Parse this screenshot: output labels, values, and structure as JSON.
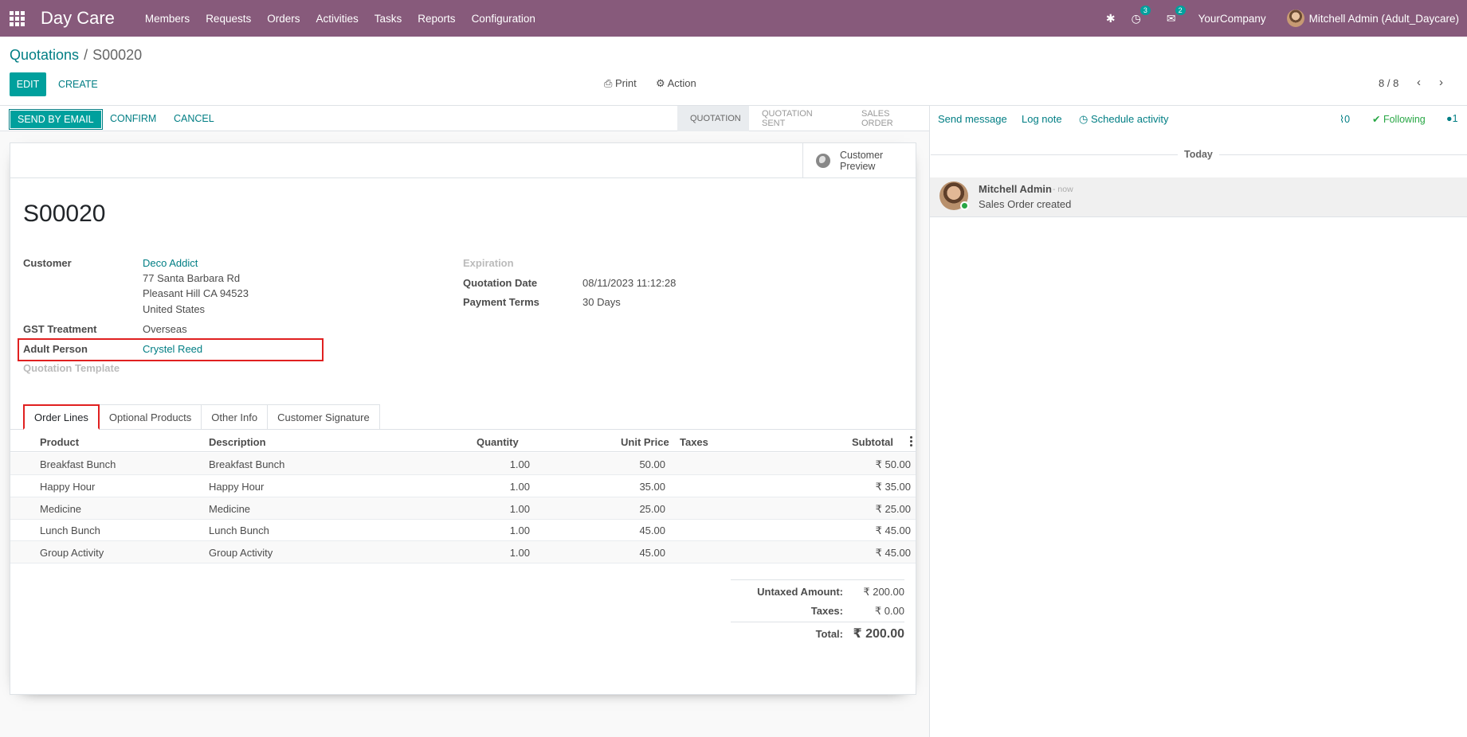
{
  "navbar": {
    "brand": "Day Care",
    "menu": [
      "Members",
      "Requests",
      "Orders",
      "Activities",
      "Tasks",
      "Reports",
      "Configuration"
    ],
    "activity_count": "3",
    "message_count": "2",
    "company": "YourCompany",
    "user": "Mitchell Admin (Adult_Daycare)"
  },
  "control": {
    "breadcrumb_parent": "Quotations",
    "breadcrumb_sep": "/",
    "breadcrumb_current": "S00020",
    "edit": "EDIT",
    "create": "CREATE",
    "print": "Print",
    "action": "Action",
    "pager": "8 / 8"
  },
  "statusbar": {
    "send_email": "SEND BY EMAIL",
    "confirm": "CONFIRM",
    "cancel": "CANCEL",
    "stages": [
      "QUOTATION",
      "QUOTATION SENT",
      "SALES ORDER"
    ]
  },
  "form": {
    "preview_label": "Customer Preview",
    "title": "S00020",
    "customer_label": "Customer",
    "customer_name": "Deco Addict",
    "address1": "77 Santa Barbara Rd",
    "address2": "Pleasant Hill CA 94523",
    "address3": "United States",
    "gst_label": "GST Treatment",
    "gst_value": "Overseas",
    "adult_label": "Adult Person",
    "adult_value": "Crystel Reed",
    "template_label": "Quotation Template",
    "expiration_label": "Expiration",
    "date_label": "Quotation Date",
    "date_value": "08/11/2023 11:12:28",
    "terms_label": "Payment Terms",
    "terms_value": "30 Days"
  },
  "tabs": [
    "Order Lines",
    "Optional Products",
    "Other Info",
    "Customer Signature"
  ],
  "table": {
    "headers": [
      "Product",
      "Description",
      "Quantity",
      "Unit Price",
      "Taxes",
      "Subtotal"
    ],
    "rows": [
      {
        "product": "Breakfast Bunch",
        "description": "Breakfast Bunch",
        "qty": "1.00",
        "price": "50.00",
        "taxes": "",
        "subtotal": "₹ 50.00"
      },
      {
        "product": "Happy Hour",
        "description": "Happy Hour",
        "qty": "1.00",
        "price": "35.00",
        "taxes": "",
        "subtotal": "₹ 35.00"
      },
      {
        "product": "Medicine",
        "description": "Medicine",
        "qty": "1.00",
        "price": "25.00",
        "taxes": "",
        "subtotal": "₹ 25.00"
      },
      {
        "product": "Lunch Bunch",
        "description": "Lunch Bunch",
        "qty": "1.00",
        "price": "45.00",
        "taxes": "",
        "subtotal": "₹ 45.00"
      },
      {
        "product": "Group Activity",
        "description": "Group Activity",
        "qty": "1.00",
        "price": "45.00",
        "taxes": "",
        "subtotal": "₹ 45.00"
      }
    ]
  },
  "totals": {
    "untaxed_label": "Untaxed Amount:",
    "untaxed_value": "₹ 200.00",
    "taxes_label": "Taxes:",
    "taxes_value": "₹ 0.00",
    "total_label": "Total:",
    "total_value": "₹ 200.00"
  },
  "chatter": {
    "send_message": "Send message",
    "log_note": "Log note",
    "schedule": "Schedule activity",
    "attachments": "0",
    "following": "Following",
    "followers": "1",
    "today": "Today",
    "author": "Mitchell Admin",
    "date": "- now",
    "body": "Sales Order created"
  }
}
